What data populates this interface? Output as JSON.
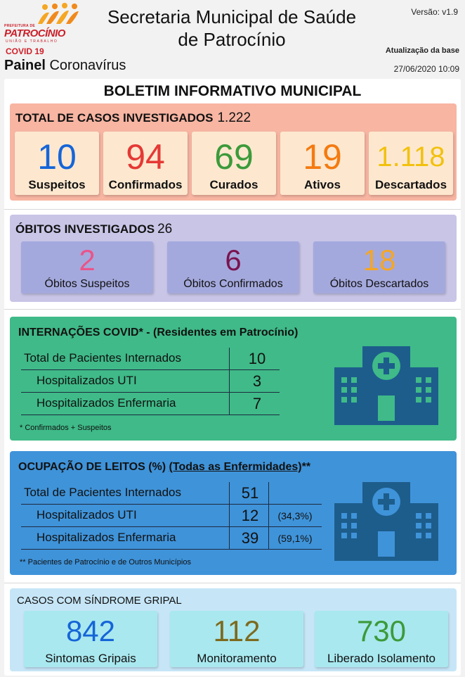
{
  "header": {
    "logo_small": "PREFEITURA DE",
    "logo_name": "PATROCÍNIO",
    "logo_sub": "UNIÃO E TRABALHO",
    "covid_label": "COVID 19",
    "painel_bold": "Painel",
    "painel_rest": " Coronavírus",
    "title_line1": "Secretaria Municipal de Saúde",
    "title_line2": "de Patrocínio",
    "version": "Versão: v1.9",
    "base_label": "Atualização da base",
    "base_date": "27/06/2020 10:09"
  },
  "boletim_title": "BOLETIM INFORMATIVO MUNICIPAL",
  "casos": {
    "title": "TOTAL DE CASOS INVESTIGADOS",
    "total": "1.222",
    "items": [
      {
        "value": "10",
        "label": "Suspeitos",
        "color": "#1565d8"
      },
      {
        "value": "94",
        "label": "Confirmados",
        "color": "#e53935"
      },
      {
        "value": "69",
        "label": "Curados",
        "color": "#3c9a3a"
      },
      {
        "value": "19",
        "label": "Ativos",
        "color": "#f47a10"
      },
      {
        "value": "1.118",
        "label": "Descartados",
        "color": "#f2c10e"
      }
    ]
  },
  "obitos": {
    "title": "ÓBITOS INVESTIGADOS",
    "total": "26",
    "items": [
      {
        "value": "2",
        "label": "Óbitos Suspeitos",
        "color": "#e9558a"
      },
      {
        "value": "6",
        "label": "Óbitos Confirmados",
        "color": "#7a1450"
      },
      {
        "value": "18",
        "label": "Óbitos Descartados",
        "color": "#f5a623"
      }
    ]
  },
  "internacoes": {
    "title": "INTERNAÇÕES COVID* -",
    "subtitle": "(Residentes em Patrocínio)",
    "rows": [
      {
        "label": "Total de Pacientes Internados",
        "value": "10"
      },
      {
        "label": "Hospitalizados UTI",
        "value": "3"
      },
      {
        "label": "Hospitalizados Enfermaria",
        "value": "7"
      }
    ],
    "footnote": "* Confirmados + Suspeitos"
  },
  "leitos": {
    "title": "OCUPAÇÃO DE LEITOS (%)",
    "subtitle": "(Todas as Enfermidades)",
    "subtitle_suffix": "**",
    "rows": [
      {
        "label": "Total de Pacientes Internados",
        "value": "51",
        "pct": ""
      },
      {
        "label": "Hospitalizados UTI",
        "value": "12",
        "pct": "(34,3%)"
      },
      {
        "label": "Hospitalizados Enfermaria",
        "value": "39",
        "pct": "(59,1%)"
      }
    ],
    "footnote": "** Pacientes de Patrocínio e de Outros Municípios"
  },
  "gripal": {
    "title": "CASOS COM SÍNDROME GRIPAL",
    "items": [
      {
        "value": "842",
        "label": "Sintomas Gripais",
        "color": "#1565d8"
      },
      {
        "value": "112",
        "label": "Monitoramento",
        "color": "#7d6a1e"
      },
      {
        "value": "730",
        "label": "Liberado Isolamento",
        "color": "#3c9a3a"
      }
    ]
  },
  "icons": {
    "hospital": "hospital-icon",
    "logo": "people-logo-icon"
  },
  "colors": {
    "hospital_icon": "#1d5d8c"
  }
}
